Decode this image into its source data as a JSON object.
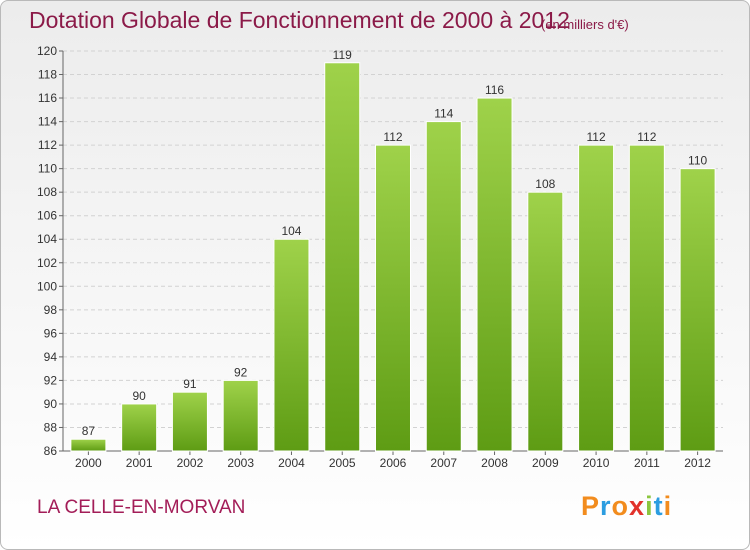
{
  "header": {
    "title": "Dotation Globale de Fonctionnement de 2000 à 2012",
    "subtitle": "(en milliers d'€)"
  },
  "footer": {
    "commune": "LA CELLE-EN-MORVAN",
    "logo": {
      "letters": [
        "P",
        "r",
        "o",
        "x",
        "i",
        "t",
        "i"
      ],
      "colors": [
        "#f28c1e",
        "#2c9de0",
        "#f28c1e",
        "#e2322b",
        "#8cc63f",
        "#2c9de0",
        "#f28c1e"
      ]
    }
  },
  "chart_data": {
    "type": "bar",
    "categories": [
      "2000",
      "2001",
      "2002",
      "2003",
      "2004",
      "2005",
      "2006",
      "2007",
      "2008",
      "2009",
      "2010",
      "2011",
      "2012"
    ],
    "values": [
      87,
      90,
      91,
      92,
      104,
      119,
      112,
      114,
      116,
      108,
      112,
      112,
      110
    ],
    "ylim": [
      86,
      120
    ],
    "yticks": [
      86,
      88,
      90,
      92,
      94,
      96,
      98,
      100,
      102,
      104,
      106,
      108,
      110,
      112,
      114,
      116,
      118,
      120
    ],
    "grid": true,
    "bar_color": "#7ab82e"
  }
}
